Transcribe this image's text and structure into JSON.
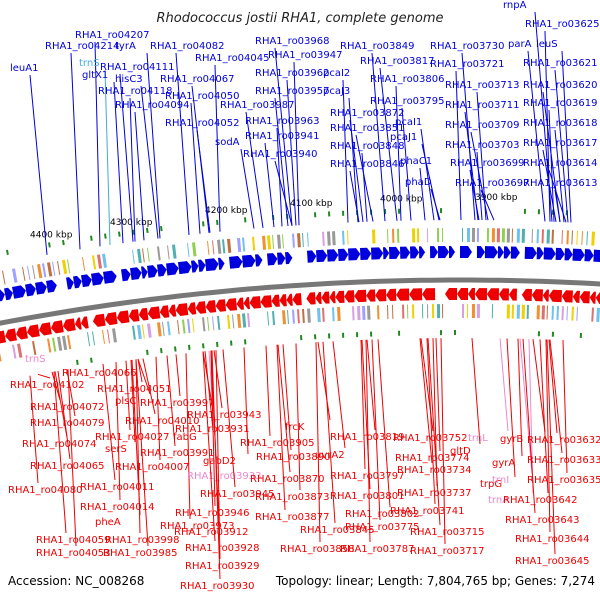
{
  "map": {
    "title": "Rhodococcus jostii RHA1, complete genome",
    "accession_text": "Accession: NC_008268",
    "summary_text": "Topology: linear; Length: 7,804,765 bp; Genes: 7,274",
    "colors": {
      "forward": "#0000dd",
      "reverse": "#ee0000",
      "rna_forward": "#44aadd",
      "rna_reverse": "#ee88cc",
      "backbone": "#777777",
      "green_marks": "#228822"
    },
    "ruler": [
      {
        "label": "4400 kbp"
      },
      {
        "label": "4300 kbp"
      },
      {
        "label": "4200 kbp"
      },
      {
        "label": "4100 kbp"
      },
      {
        "label": "4000 kbp"
      },
      {
        "label": "3900 kbp"
      }
    ],
    "genes_forward": [
      {
        "label": "RHA1_ro04207",
        "kind": "gene"
      },
      {
        "label": "RHA1_ro04214",
        "kind": "gene"
      },
      {
        "label": "tyrA",
        "kind": "gene"
      },
      {
        "label": "leuA1",
        "kind": "gene"
      },
      {
        "label": "trnS",
        "kind": "rna"
      },
      {
        "label": "gltX1",
        "kind": "gene"
      },
      {
        "label": "RHA1_ro04111",
        "kind": "gene"
      },
      {
        "label": "hisC3",
        "kind": "gene"
      },
      {
        "label": "RHA1_ro04118",
        "kind": "gene"
      },
      {
        "label": "RHA1_ro04094",
        "kind": "gene"
      },
      {
        "label": "RHA1_ro04082",
        "kind": "gene"
      },
      {
        "label": "RHA1_ro04067",
        "kind": "gene"
      },
      {
        "label": "RHA1_ro04045",
        "kind": "gene"
      },
      {
        "label": "RHA1_ro04050",
        "kind": "gene"
      },
      {
        "label": "RHA1_ro04052",
        "kind": "gene"
      },
      {
        "label": "RHA1_ro03968",
        "kind": "gene"
      },
      {
        "label": "RHA1_ro03947",
        "kind": "gene"
      },
      {
        "label": "RHA1_ro03962",
        "kind": "gene"
      },
      {
        "label": "RHA1_ro03957",
        "kind": "gene"
      },
      {
        "label": "RHA1_ro03987",
        "kind": "gene"
      },
      {
        "label": "RHA1_ro03963",
        "kind": "gene"
      },
      {
        "label": "RHA1_ro03941",
        "kind": "gene"
      },
      {
        "label": "sodA",
        "kind": "gene"
      },
      {
        "label": "RHA1_ro03940",
        "kind": "gene"
      },
      {
        "label": "pcaI2",
        "kind": "gene"
      },
      {
        "label": "pcaJ3",
        "kind": "gene"
      },
      {
        "label": "RHA1_ro03849",
        "kind": "gene"
      },
      {
        "label": "RHA1_ro03817",
        "kind": "gene"
      },
      {
        "label": "RHA1_ro03806",
        "kind": "gene"
      },
      {
        "label": "RHA1_ro03795",
        "kind": "gene"
      },
      {
        "label": "RHA1_ro03872",
        "kind": "gene"
      },
      {
        "label": "RHA1_ro03851",
        "kind": "gene"
      },
      {
        "label": "RHA1_ro03848",
        "kind": "gene"
      },
      {
        "label": "RHA1_ro03846",
        "kind": "gene"
      },
      {
        "label": "pcaI1",
        "kind": "gene"
      },
      {
        "label": "pcaJ1",
        "kind": "gene"
      },
      {
        "label": "phaC1",
        "kind": "gene"
      },
      {
        "label": "phaD",
        "kind": "gene"
      },
      {
        "label": "RHA1_ro03730",
        "kind": "gene"
      },
      {
        "label": "parA",
        "kind": "gene"
      },
      {
        "label": "RHA1_ro03721",
        "kind": "gene"
      },
      {
        "label": "RHA1_ro03713",
        "kind": "gene"
      },
      {
        "label": "RHA1_ro03711",
        "kind": "gene"
      },
      {
        "label": "RHA1_ro03709",
        "kind": "gene"
      },
      {
        "label": "RHA1_ro03703",
        "kind": "gene"
      },
      {
        "label": "RHA1_ro03699",
        "kind": "gene"
      },
      {
        "label": "RHA1_ro03697",
        "kind": "gene"
      },
      {
        "label": "rnpA",
        "kind": "gene"
      },
      {
        "label": "RHA1_ro03625",
        "kind": "gene"
      },
      {
        "label": "leuS",
        "kind": "gene"
      },
      {
        "label": "RHA1_ro03621",
        "kind": "gene"
      },
      {
        "label": "RHA1_ro03620",
        "kind": "gene"
      },
      {
        "label": "RHA1_ro03619",
        "kind": "gene"
      },
      {
        "label": "RHA1_ro03618",
        "kind": "gene"
      },
      {
        "label": "RHA1_ro03617",
        "kind": "gene"
      },
      {
        "label": "RHA1_ro03614",
        "kind": "gene"
      },
      {
        "label": "RHA1_ro03613",
        "kind": "gene"
      }
    ],
    "genes_reverse": [
      {
        "label": "trnS",
        "kind": "rna"
      },
      {
        "label": "RHA1_ro04066",
        "kind": "gene"
      },
      {
        "label": "RHA1_ro04102",
        "kind": "gene"
      },
      {
        "label": "RHA1_ro04051",
        "kind": "gene"
      },
      {
        "label": "RHA1_ro04072",
        "kind": "gene"
      },
      {
        "label": "plsC",
        "kind": "gene"
      },
      {
        "label": "RHA1_ro03997",
        "kind": "gene"
      },
      {
        "label": "RHA1_ro04079",
        "kind": "gene"
      },
      {
        "label": "RHA1_ro04010",
        "kind": "gene"
      },
      {
        "label": "RHA1_ro04027",
        "kind": "gene"
      },
      {
        "label": "fabG",
        "kind": "gene"
      },
      {
        "label": "RHA1_ro04074",
        "kind": "gene"
      },
      {
        "label": "serS",
        "kind": "gene"
      },
      {
        "label": "RHA1_ro03991",
        "kind": "gene"
      },
      {
        "label": "RHA1_ro04065",
        "kind": "gene"
      },
      {
        "label": "RHA1_ro04007",
        "kind": "gene"
      },
      {
        "label": "RHA1_ro04080",
        "kind": "gene"
      },
      {
        "label": "RHA1_ro04011",
        "kind": "gene"
      },
      {
        "label": "RHA1_ro04014",
        "kind": "gene"
      },
      {
        "label": "pheA",
        "kind": "gene"
      },
      {
        "label": "RHA1_ro04059",
        "kind": "gene"
      },
      {
        "label": "RHA1_ro03998",
        "kind": "gene"
      },
      {
        "label": "RHA1_ro04053",
        "kind": "gene"
      },
      {
        "label": "RHA1_ro03985",
        "kind": "gene"
      },
      {
        "label": "RHA1_ro03973",
        "kind": "gene"
      },
      {
        "label": "RHA1_ro03943",
        "kind": "gene"
      },
      {
        "label": "RHA1_ro03931",
        "kind": "gene"
      },
      {
        "label": "gabD2",
        "kind": "gene"
      },
      {
        "label": "RHA1_ro03933",
        "kind": "rna"
      },
      {
        "label": "RHA1_ro03945",
        "kind": "gene"
      },
      {
        "label": "RHA1_ro03946",
        "kind": "gene"
      },
      {
        "label": "RHA1_ro03912",
        "kind": "gene"
      },
      {
        "label": "RHA1_ro03928",
        "kind": "gene"
      },
      {
        "label": "RHA1_ro03929",
        "kind": "gene"
      },
      {
        "label": "RHA1_ro03930",
        "kind": "gene"
      },
      {
        "label": "frcK",
        "kind": "gene"
      },
      {
        "label": "RHA1_ro03905",
        "kind": "gene"
      },
      {
        "label": "RHA1_ro03890",
        "kind": "gene"
      },
      {
        "label": "RHA1_ro03870",
        "kind": "gene"
      },
      {
        "label": "RHA1_ro03873",
        "kind": "gene"
      },
      {
        "label": "RHA1_ro03877",
        "kind": "gene"
      },
      {
        "label": "RHA1_ro03845",
        "kind": "gene"
      },
      {
        "label": "RHA1_ro03858",
        "kind": "gene"
      },
      {
        "label": "RHA1_ro03819",
        "kind": "gene"
      },
      {
        "label": "uvrA2",
        "kind": "gene"
      },
      {
        "label": "RHA1_ro03797",
        "kind": "gene"
      },
      {
        "label": "RHA1_ro03801",
        "kind": "gene"
      },
      {
        "label": "RHA1_ro03802",
        "kind": "gene"
      },
      {
        "label": "RHA1_ro03787",
        "kind": "gene"
      },
      {
        "label": "RHA1_ro03775",
        "kind": "gene"
      },
      {
        "label": "RHA1_ro03752",
        "kind": "gene"
      },
      {
        "label": "RHA1_ro03774",
        "kind": "gene"
      },
      {
        "label": "gltD",
        "kind": "gene"
      },
      {
        "label": "RHA1_ro03734",
        "kind": "gene"
      },
      {
        "label": "RHA1_ro03737",
        "kind": "gene"
      },
      {
        "label": "RHA1_ro03741",
        "kind": "gene"
      },
      {
        "label": "RHA1_ro03715",
        "kind": "gene"
      },
      {
        "label": "RHA1_ro03717",
        "kind": "gene"
      },
      {
        "label": "trnL",
        "kind": "rna"
      },
      {
        "label": "gyrB",
        "kind": "gene"
      },
      {
        "label": "gyrA",
        "kind": "gene"
      },
      {
        "label": "trpG",
        "kind": "gene"
      },
      {
        "label": "trnI",
        "kind": "rna"
      },
      {
        "label": "trnA",
        "kind": "rna"
      },
      {
        "label": "RHA1_ro03632",
        "kind": "gene"
      },
      {
        "label": "RHA1_ro03633",
        "kind": "gene"
      },
      {
        "label": "RHA1_ro03635",
        "kind": "gene"
      },
      {
        "label": "RHA1_ro03642",
        "kind": "gene"
      },
      {
        "label": "RHA1_ro03643",
        "kind": "gene"
      },
      {
        "label": "RHA1_ro03644",
        "kind": "gene"
      },
      {
        "label": "RHA1_ro03645",
        "kind": "gene"
      }
    ]
  }
}
